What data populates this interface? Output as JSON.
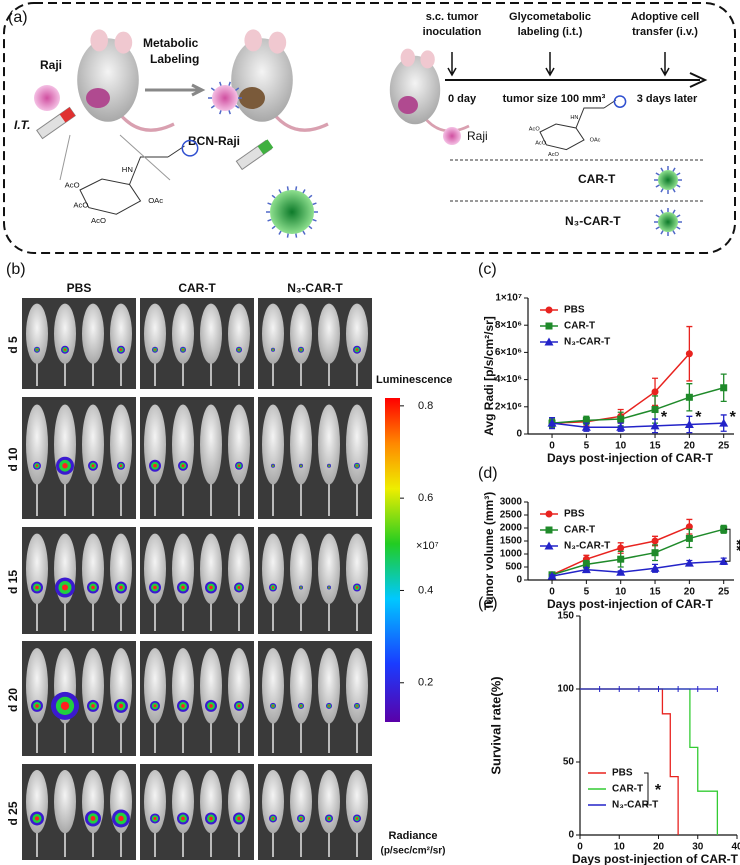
{
  "panel_a": {
    "label": "(a)",
    "raji": "Raji",
    "it": "I.T.",
    "metabolic": [
      "Metabolic",
      "Labeling"
    ],
    "bcn_raji": "BCN-Raji",
    "chem": [
      "HN",
      "AcO",
      "OAc",
      "AcO",
      "AcO"
    ],
    "steps": [
      {
        "title": [
          "s.c. tumor",
          "inoculation"
        ],
        "note": "0 day"
      },
      {
        "title": [
          "Glycometabolic",
          "labeling (i.t.)"
        ],
        "note": "tumor size 100 mm³"
      },
      {
        "title": [
          "Adoptive cell",
          "transfer (i.v.)"
        ],
        "note": "3 days later"
      }
    ],
    "legend_raji": "Raji",
    "rows": [
      "CAR-T",
      "N₃-CAR-T"
    ]
  },
  "panel_b": {
    "label": "(b)",
    "columns": [
      "PBS",
      "CAR-T",
      "N₃-CAR-T"
    ],
    "rows": [
      "d 5",
      "d 10",
      "d 15",
      "d 20",
      "d 25"
    ],
    "colorbar": {
      "title": "Luminescence",
      "unit": "×10⁷",
      "caption": [
        "Radiance",
        "(p/sec/cm²/sr)"
      ],
      "lim": [
        0.115,
        0.817
      ],
      "ticks": [
        0.2,
        0.4,
        0.6,
        0.8
      ]
    }
  },
  "chart_data": [
    {
      "type": "line",
      "label": "(c)",
      "ylabel": "Avg Radi [p/s/cm²/sr]",
      "xlabel": "Days post-injection of CAR-T",
      "x": [
        0,
        5,
        10,
        15,
        20,
        25
      ],
      "xlim": [
        -3.5,
        26.5
      ],
      "xticks": [
        0,
        5,
        10,
        15,
        20,
        25
      ],
      "ylim": [
        0,
        10000000
      ],
      "yticks": [
        0,
        {
          "value": 2000000,
          "label": "2×10⁶"
        },
        {
          "value": 4000000,
          "label": "4×10⁶"
        },
        {
          "value": 6000000,
          "label": "6×10⁶"
        },
        {
          "value": 8000000,
          "label": "8×10⁶"
        },
        {
          "value": 10000000,
          "label": "1×10⁷"
        }
      ],
      "legend": "upper left",
      "series": [
        {
          "name": "PBS",
          "color": "#e8231f",
          "marker": "circle",
          "values": [
            800000,
            900000,
            1300000,
            3100000,
            5900000,
            null
          ],
          "errors": [
            300000,
            300000,
            500000,
            1000000,
            2000000,
            null
          ]
        },
        {
          "name": "CAR-T",
          "color": "#1f8a2a",
          "marker": "square",
          "values": [
            800000,
            1000000,
            1100000,
            1800000,
            2700000,
            3400000
          ],
          "errors": [
            300000,
            300000,
            500000,
            1000000,
            1000000,
            1000000
          ]
        },
        {
          "name": "N₃-CAR-T",
          "color": "#2323c8",
          "marker": "triangle",
          "values": [
            800000,
            500000,
            500000,
            600000,
            700000,
            800000
          ],
          "errors": [
            400000,
            300000,
            300000,
            500000,
            600000,
            600000
          ]
        }
      ],
      "annotations": [
        "*",
        "*",
        "*"
      ]
    },
    {
      "type": "line",
      "label": "(d)",
      "ylabel": "Tumor volume (mm³)",
      "xlabel": "Days post-injection of CAR-T",
      "x": [
        0,
        5,
        10,
        15,
        20,
        25
      ],
      "xlim": [
        -3.5,
        26.5
      ],
      "xticks": [
        0,
        5,
        10,
        15,
        20,
        25
      ],
      "ylim": [
        0,
        3000
      ],
      "yticks": [
        0,
        500,
        1000,
        1500,
        2000,
        2500,
        3000
      ],
      "legend": "upper left",
      "series": [
        {
          "name": "PBS",
          "color": "#e8231f",
          "marker": "circle",
          "values": [
            200,
            800,
            1230,
            1500,
            2050,
            null
          ],
          "errors": [
            100,
            150,
            200,
            180,
            280,
            null
          ]
        },
        {
          "name": "CAR-T",
          "color": "#1f8a2a",
          "marker": "square",
          "values": [
            200,
            600,
            800,
            1050,
            1600,
            1950
          ],
          "errors": [
            100,
            150,
            300,
            300,
            350,
            150
          ]
        },
        {
          "name": "N₃-CAR-T",
          "color": "#2323c8",
          "marker": "triangle",
          "values": [
            150,
            400,
            300,
            450,
            650,
            720
          ],
          "errors": [
            50,
            80,
            50,
            150,
            100,
            120
          ]
        }
      ],
      "annotations": [
        "**"
      ]
    },
    {
      "type": "step",
      "label": "(e)",
      "ylabel": "Survival rate(%)",
      "xlabel": "Days post-injection of CAR-T",
      "xlim": [
        0,
        40
      ],
      "xticks": [
        0,
        10,
        20,
        30,
        40
      ],
      "ylim": [
        0,
        150
      ],
      "yticks": [
        0,
        50,
        100,
        150
      ],
      "legend": "lower left",
      "series": [
        {
          "name": "PBS",
          "color": "#e8231f",
          "x": [
            0,
            21,
            23,
            25
          ],
          "values": [
            100,
            83,
            40,
            0
          ]
        },
        {
          "name": "CAR-T",
          "color": "#33cc33",
          "x": [
            0,
            28,
            30,
            35
          ],
          "values": [
            100,
            60,
            30,
            0
          ]
        },
        {
          "name": "N₃-CAR-T",
          "color": "#2323c8",
          "x": [
            0,
            35
          ],
          "values": [
            100,
            100
          ],
          "censored": [
            5,
            10,
            15,
            20,
            25,
            30,
            35
          ]
        }
      ],
      "annotations": [
        "*"
      ]
    }
  ]
}
